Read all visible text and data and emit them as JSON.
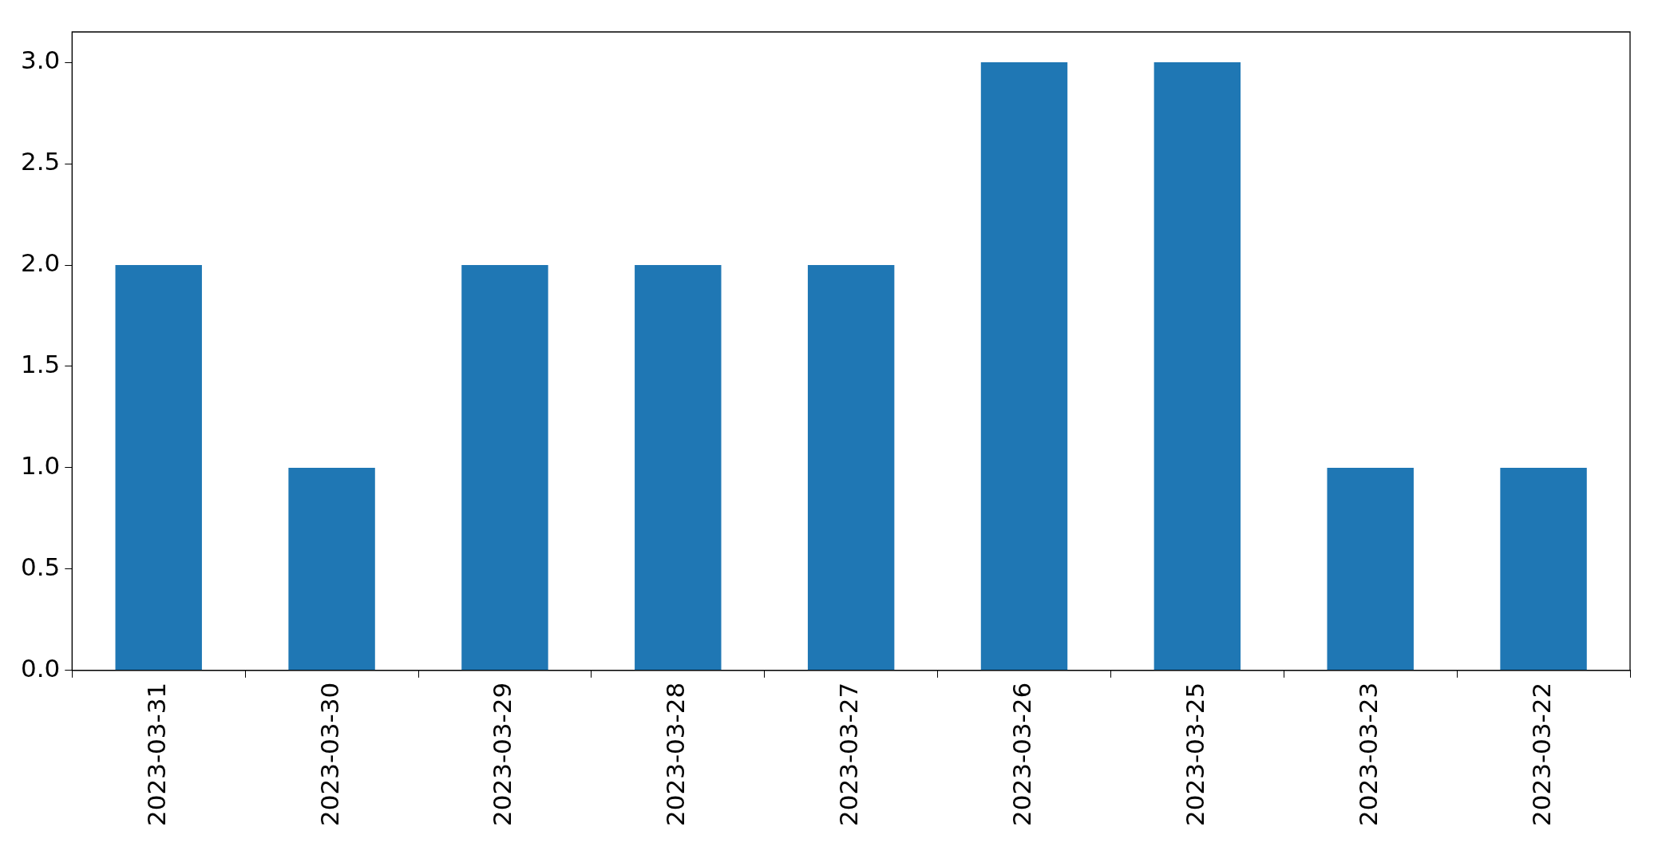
{
  "chart_data": {
    "type": "bar",
    "categories": [
      "2023-03-31",
      "2023-03-30",
      "2023-03-29",
      "2023-03-28",
      "2023-03-27",
      "2023-03-26",
      "2023-03-25",
      "2023-03-23",
      "2023-03-22"
    ],
    "values": [
      2,
      1,
      2,
      2,
      2,
      3,
      3,
      1,
      1
    ],
    "color": "#1f77b4",
    "ylim": [
      0,
      3.15
    ],
    "yticks": [
      {
        "value": 0,
        "label": "0.0"
      },
      {
        "value": 0.5,
        "label": "0.5"
      },
      {
        "value": 1,
        "label": "1.0"
      },
      {
        "value": 1.5,
        "label": "1.5"
      },
      {
        "value": 2,
        "label": "2.0"
      },
      {
        "value": 2.5,
        "label": "2.5"
      },
      {
        "value": 3,
        "label": "3.0"
      }
    ],
    "grid": false,
    "legend": false
  }
}
